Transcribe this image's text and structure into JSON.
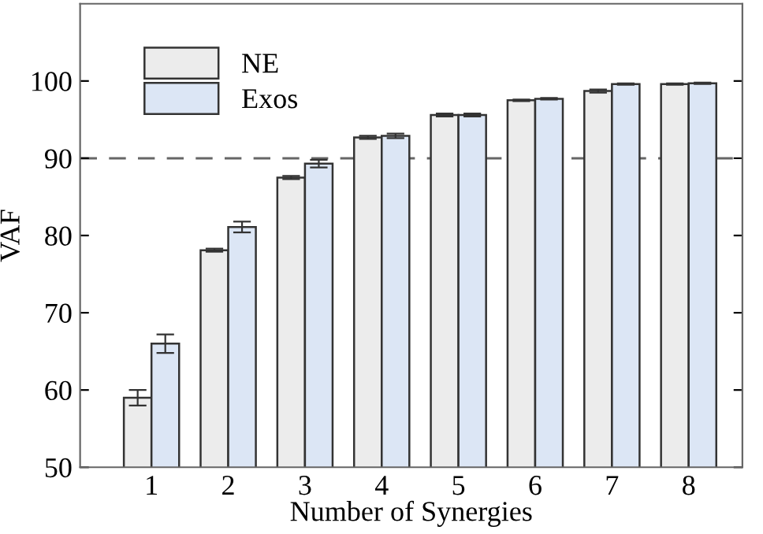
{
  "chart_data": {
    "type": "bar",
    "xlabel": "Number of Synergies",
    "ylabel": "VAF",
    "categories": [
      "1",
      "2",
      "3",
      "4",
      "5",
      "6",
      "7",
      "8"
    ],
    "series": [
      {
        "name": "NE",
        "color": "#ececec",
        "values": [
          59.0,
          78.1,
          87.5,
          92.7,
          95.6,
          97.5,
          98.7,
          99.6
        ],
        "errors": [
          1.0,
          0.2,
          0.2,
          0.2,
          0.2,
          0.1,
          0.2,
          0.1
        ]
      },
      {
        "name": "Exos",
        "color": "#dce6f5",
        "values": [
          66.0,
          81.1,
          89.3,
          92.9,
          95.6,
          97.7,
          99.6,
          99.7
        ],
        "errors": [
          1.2,
          0.7,
          0.5,
          0.3,
          0.2,
          0.1,
          0.1,
          0.1
        ]
      }
    ],
    "ylim": [
      50,
      110
    ],
    "yticks": [
      50,
      60,
      70,
      80,
      90,
      100
    ],
    "ref_lines": [
      {
        "axis": "y",
        "value": 90,
        "color": "#666666",
        "line_style": "dashed"
      }
    ],
    "legend": "top left",
    "grid": false
  }
}
